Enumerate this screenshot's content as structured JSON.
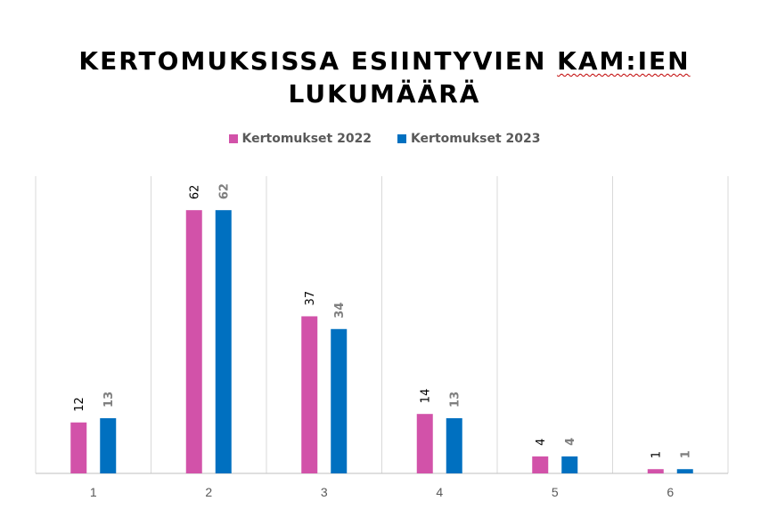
{
  "chart_data": {
    "type": "bar",
    "title_parts": [
      "KERTOMUKSISSA ESIINTYVIEN ",
      "KAM:IEN",
      " LUKUMÄÄRÄ"
    ],
    "categories": [
      "1",
      "2",
      "3",
      "4",
      "5",
      "6"
    ],
    "series": [
      {
        "name": "Kertomukset 2022",
        "color": "#d252a9",
        "values": [
          12,
          62,
          37,
          14,
          4,
          1
        ]
      },
      {
        "name": "Kertomukset 2023",
        "color": "#0070c0",
        "values": [
          13,
          62,
          34,
          13,
          4,
          1
        ]
      }
    ],
    "xlabel": "",
    "ylabel": "",
    "ylim": [
      0,
      70
    ],
    "grid": "vertical-category-separators",
    "legend_position": "top-center",
    "data_labels": true
  }
}
